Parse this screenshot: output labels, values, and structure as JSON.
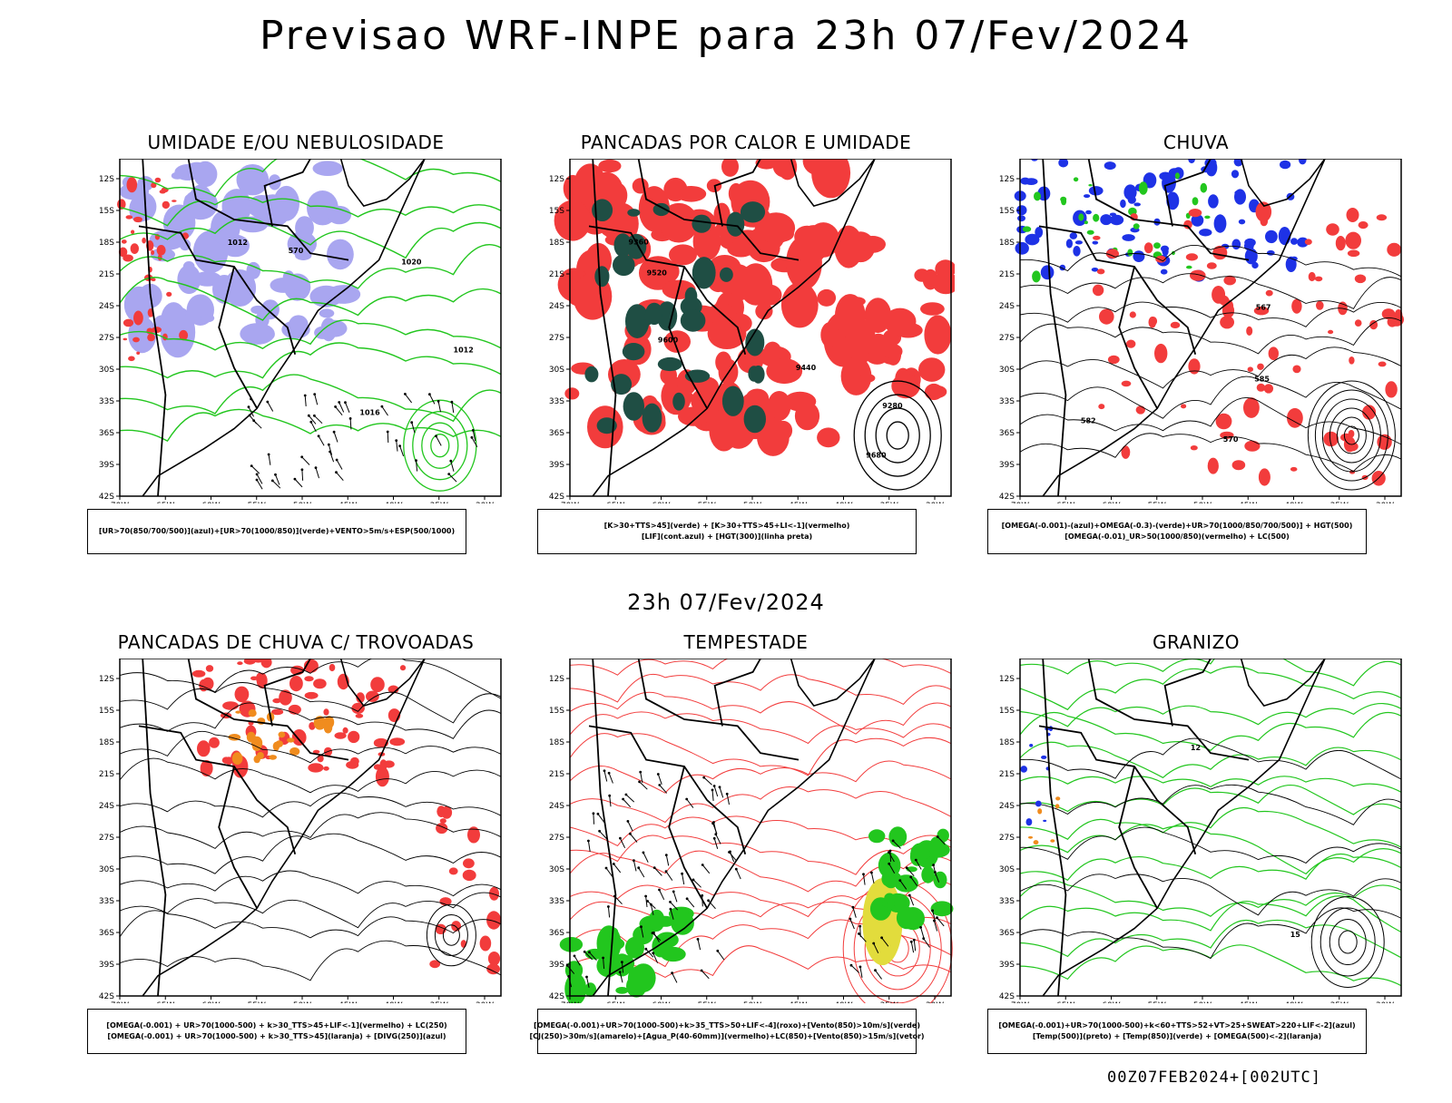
{
  "title": "Previsao WRF-INPE  para 23h 07/Fev/2024",
  "subtitle": "23h 07/Fev/2024",
  "footer": "00Z07FEB2024+[002UTC]",
  "axes": {
    "lat_ticks": [
      "12S",
      "15S",
      "18S",
      "21S",
      "24S",
      "27S",
      "30S",
      "33S",
      "36S",
      "39S",
      "42S"
    ],
    "lon_ticks": [
      "70W",
      "65W",
      "60W",
      "55W",
      "50W",
      "45W",
      "40W",
      "35W",
      "30W"
    ]
  },
  "colors": {
    "red": "#f23c3c",
    "green": "#22c61e",
    "blue": "#1e32e6",
    "lavender": "#a9a6f0",
    "darkgreen": "#1f4e44",
    "orange": "#f08c1e",
    "yellow": "#e2dc3c"
  },
  "panels": [
    {
      "title": "UMIDADE E/OU NEBULOSIDADE",
      "legend": [
        "[UR>70(850/700/500)](azul)+[UR>70(1000/850)](verde)+VENTO>5m/s+ESP(500/1000)"
      ],
      "labels": [
        "1012",
        "1016",
        "1020",
        "570",
        "1012"
      ]
    },
    {
      "title": "PANCADAS POR CALOR E UMIDADE",
      "legend": [
        "[K>30+TTS>45](verde) + [K>30+TTS>45+LI<-1](vermelho)",
        "[LIF](cont.azul) + [HGT(300)](linha preta)"
      ],
      "labels": [
        "9680",
        "9600",
        "9440",
        "9360",
        "9280",
        "9520"
      ]
    },
    {
      "title": "CHUVA",
      "legend": [
        "[OMEGA(-0.001)-(azul)+OMEGA(-0.3)-(verde)+UR>70(1000/850/700/500)] + HGT(500)",
        "[OMEGA(-0.01)_UR>50(1000/850)(vermelho) + LC(500)"
      ],
      "labels": [
        "585",
        "582",
        "570",
        "567"
      ]
    },
    {
      "title": "PANCADAS DE CHUVA C/ TROVOADAS",
      "legend": [
        "[OMEGA(-0.001) + UR>70(1000-500) + k>30_TTS>45+LIF<-1](vermelho) + LC(250)",
        "[OMEGA(-0.001) + UR>70(1000-500) + k>30_TTS>45](laranja) + [DIVG(250)](azul)"
      ],
      "labels": []
    },
    {
      "title": "TEMPESTADE",
      "legend": [
        "[OMEGA(-0.001)+UR>70(1000-500)+k>35_TTS>50+LIF<-4](roxo)+[Vento(850)>10m/s](verde)",
        "[CJ(250)>30m/s](amarelo)+[Agua_P(40-60mm)](vermelho)+LC(850)+[Vento(850)>15m/s](vetor)"
      ],
      "labels": []
    },
    {
      "title": "GRANIZO",
      "legend": [
        "[OMEGA(-0.001)+UR>70(1000-500)+k<60+TTS>52+VT>25+SWEAT>220+LIF<-2](azul)",
        "[Temp(500)](preto) + [Temp(850)](verde) + [OMEGA(500)<-2](laranja)"
      ],
      "labels": [
        "12",
        "15"
      ]
    }
  ],
  "chart_data": [
    {
      "type": "heatmap",
      "title": "UMIDADE E/OU NEBULOSIDADE",
      "x_range": [
        "70W",
        "30W"
      ],
      "y_range": [
        "12S",
        "42S"
      ]
    },
    {
      "type": "heatmap",
      "title": "PANCADAS POR CALOR E UMIDADE",
      "x_range": [
        "70W",
        "30W"
      ],
      "y_range": [
        "12S",
        "42S"
      ]
    },
    {
      "type": "heatmap",
      "title": "CHUVA",
      "x_range": [
        "70W",
        "30W"
      ],
      "y_range": [
        "12S",
        "42S"
      ]
    },
    {
      "type": "heatmap",
      "title": "PANCADAS DE CHUVA C/ TROVOADAS",
      "x_range": [
        "70W",
        "30W"
      ],
      "y_range": [
        "12S",
        "42S"
      ]
    },
    {
      "type": "heatmap",
      "title": "TEMPESTADE",
      "x_range": [
        "70W",
        "30W"
      ],
      "y_range": [
        "12S",
        "42S"
      ]
    },
    {
      "type": "heatmap",
      "title": "GRANIZO",
      "x_range": [
        "70W",
        "30W"
      ],
      "y_range": [
        "12S",
        "42S"
      ]
    }
  ]
}
